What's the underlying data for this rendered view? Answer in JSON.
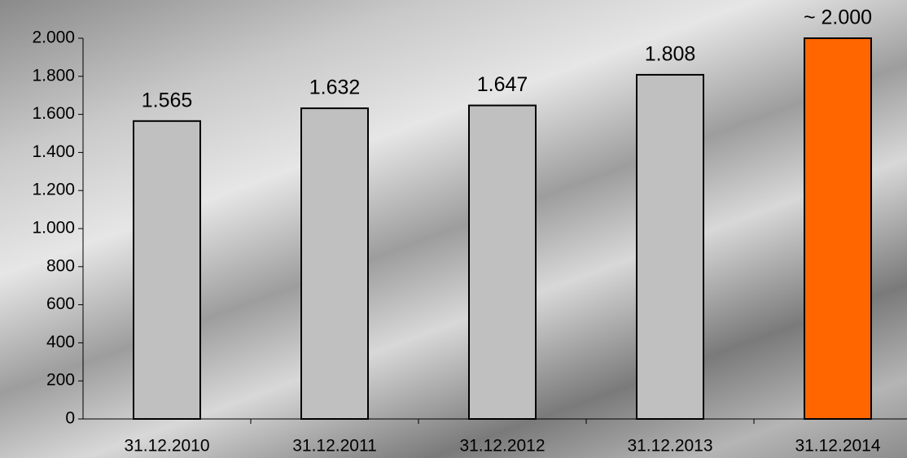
{
  "chart_data": {
    "type": "bar",
    "categories": [
      "31.12.2010",
      "31.12.2011",
      "31.12.2012",
      "31.12.2013",
      "31.12.2014"
    ],
    "values": [
      1565,
      1632,
      1647,
      1808,
      2000
    ],
    "value_labels": [
      "1.565",
      "1.632",
      "1.647",
      "1.808",
      "~ 2.000"
    ],
    "colors": [
      "#c0c0c0",
      "#c0c0c0",
      "#c0c0c0",
      "#c0c0c0",
      "#ff6600"
    ],
    "ylim": [
      0,
      2000
    ],
    "yticks": [
      0,
      200,
      400,
      600,
      800,
      {
        "value": 1000,
        "label": "1.000"
      },
      {
        "value": 1200,
        "label": "1.200"
      },
      {
        "value": 1400,
        "label": "1.400"
      },
      {
        "value": 1600,
        "label": "1.600"
      },
      {
        "value": 1800,
        "label": "1.800"
      },
      {
        "value": 2000,
        "label": "2.000"
      }
    ],
    "grid": false
  }
}
